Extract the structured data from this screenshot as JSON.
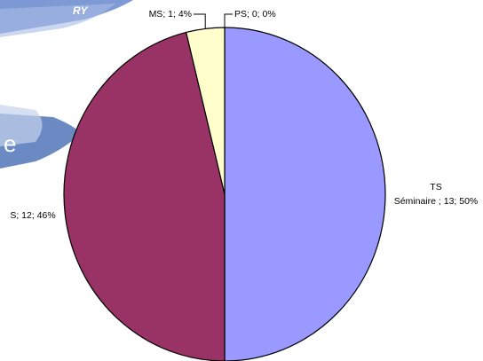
{
  "background": {
    "banner_text_fragments": [
      "RY",
      "e"
    ],
    "banner_color": "#5b7dbd"
  },
  "chart_data": {
    "type": "pie",
    "title": "",
    "slices": [
      {
        "name": "PS",
        "value": 0,
        "percent": 0,
        "label": "PS; 0; 0%",
        "color": "#ffffc0"
      },
      {
        "name": "TS Séminaire",
        "value": 13,
        "percent": 50,
        "label_lines": [
          "TS",
          "Séminaire ; 13; 50%"
        ],
        "color": "#9999ff"
      },
      {
        "name": "S",
        "value": 12,
        "percent": 46,
        "label": "S; 12; 46%",
        "color": "#993366"
      },
      {
        "name": "MS",
        "value": 1,
        "percent": 4,
        "label": "MS; 1; 4%",
        "color": "#ffffcc"
      }
    ],
    "start_angle": "top",
    "direction": "clockwise",
    "legend": "none"
  }
}
